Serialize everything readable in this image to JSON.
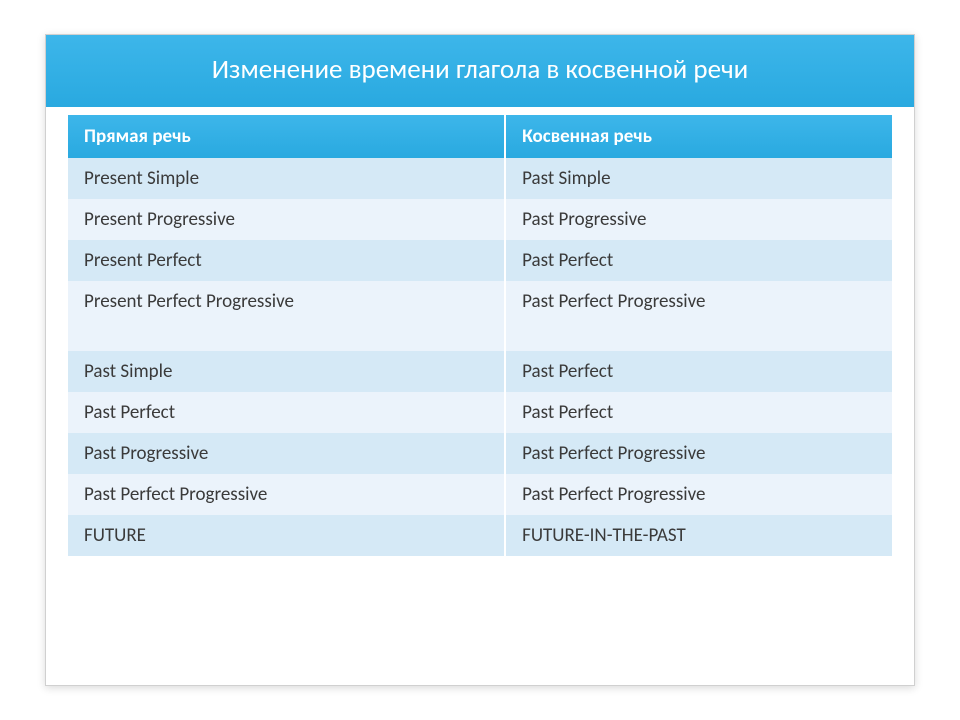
{
  "title": "Изменение времени глагола в косвенной речи",
  "headers": {
    "direct": "Прямая речь",
    "indirect": "Косвенная речь"
  },
  "rows": [
    {
      "direct": "Present Simple",
      "indirect": "Past Simple"
    },
    {
      "direct": "Present Progressive",
      "indirect": "Past Progressive"
    },
    {
      "direct": "Present Perfect",
      "indirect": "Past Perfect"
    },
    {
      "direct": "Present Perfect Progressive",
      "indirect": "Past Perfect Progressive"
    },
    {
      "direct": "Past Simple",
      "indirect": "Past Perfect"
    },
    {
      "direct": "Past Perfect",
      "indirect": "Past Perfect"
    },
    {
      "direct": "Past Progressive",
      "indirect": "Past Perfect Progressive"
    },
    {
      "direct": "Past Perfect Progressive",
      "indirect": "Past Perfect Progressive"
    },
    {
      "direct": "FUTURE",
      "indirect": "FUTURE-IN-THE-PAST"
    }
  ],
  "colors": {
    "header_bg_top": "#3db6ea",
    "header_bg_bottom": "#29a9e0",
    "header_text": "#ffffff",
    "band_a": "#d5e9f6",
    "band_b": "#ebf3fb",
    "cell_text": "#3a3a3a",
    "slide_bg": "#ffffff"
  },
  "layout": {
    "slide_w": 870,
    "slide_h": 652,
    "title_fontsize": 27,
    "header_fontsize": 19,
    "cell_fontsize": 19
  }
}
